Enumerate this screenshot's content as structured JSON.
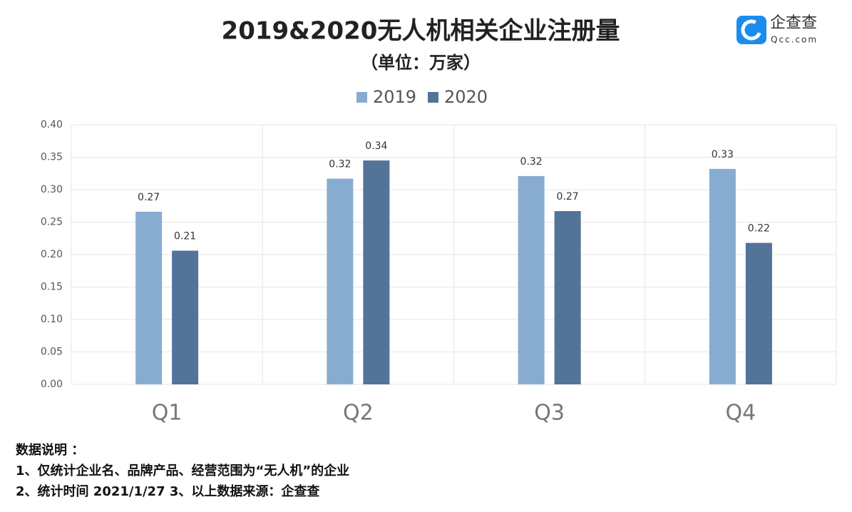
{
  "chart_data": {
    "type": "bar",
    "title": "2019&2020无人机相关企业注册量",
    "subtitle": "（单位：万家）",
    "categories": [
      "Q1",
      "Q2",
      "Q3",
      "Q4"
    ],
    "series": [
      {
        "name": "2019",
        "color": "#87acd0",
        "values": [
          0.266,
          0.317,
          0.321,
          0.332
        ],
        "value_labels": [
          "0.27",
          "0.32",
          "0.32",
          "0.33"
        ]
      },
      {
        "name": "2020",
        "color": "#537399",
        "values": [
          0.206,
          0.345,
          0.267,
          0.218
        ],
        "value_labels": [
          "0.21",
          "0.34",
          "0.27",
          "0.22"
        ]
      }
    ],
    "ylim": [
      0,
      0.4
    ],
    "yticks": [
      {
        "value": 0,
        "label": "0.00"
      },
      {
        "value": 0.05,
        "label": "0.05"
      },
      {
        "value": 0.1,
        "label": "0.10"
      },
      {
        "value": 0.15,
        "label": "0.15"
      },
      {
        "value": 0.2,
        "label": "0.20"
      },
      {
        "value": 0.25,
        "label": "0.25"
      },
      {
        "value": 0.3,
        "label": "0.30"
      },
      {
        "value": 0.35,
        "label": "0.35"
      },
      {
        "value": 0.4,
        "label": "0.40"
      }
    ],
    "grid": true,
    "legend": "top"
  },
  "logo": {
    "name": "企查查",
    "site": "Qcc.com"
  },
  "notes": [
    "数据说明 ：",
    "1、仅统计企业名、品牌产品、经营范围为“无人机”的企业",
    "2、统计时间 2021/1/27   3、以上数据来源：企查查"
  ]
}
